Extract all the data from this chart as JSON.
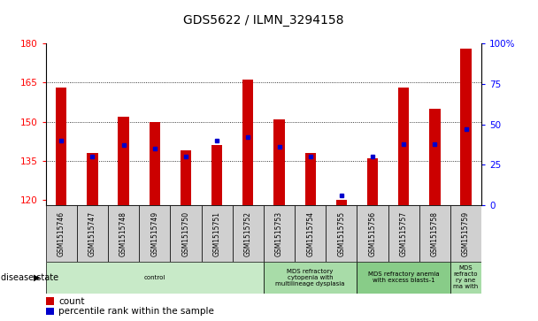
{
  "title": "GDS5622 / ILMN_3294158",
  "samples": [
    "GSM1515746",
    "GSM1515747",
    "GSM1515748",
    "GSM1515749",
    "GSM1515750",
    "GSM1515751",
    "GSM1515752",
    "GSM1515753",
    "GSM1515754",
    "GSM1515755",
    "GSM1515756",
    "GSM1515757",
    "GSM1515758",
    "GSM1515759"
  ],
  "count_values": [
    163,
    138,
    152,
    150,
    139,
    141,
    166,
    151,
    138,
    120,
    136,
    163,
    155,
    178
  ],
  "percentile_values": [
    40,
    30,
    37,
    35,
    30,
    40,
    42,
    36,
    30,
    6,
    30,
    38,
    38,
    47
  ],
  "y_min": 118,
  "y_max": 180,
  "y_ticks": [
    120,
    135,
    150,
    165,
    180
  ],
  "y2_ticks_vals": [
    0,
    25,
    50,
    75,
    100
  ],
  "y2_tick_labels": [
    "0",
    "25",
    "50",
    "75",
    "100%"
  ],
  "grid_lines": [
    135,
    150,
    165
  ],
  "disease_groups": [
    {
      "label": "control",
      "start": 0,
      "end": 7,
      "color": "#c8eac8"
    },
    {
      "label": "MDS refractory\ncytopenia with\nmultilineage dysplasia",
      "start": 7,
      "end": 10,
      "color": "#a8dca8"
    },
    {
      "label": "MDS refractory anemia\nwith excess blasts-1",
      "start": 10,
      "end": 13,
      "color": "#88cc88"
    },
    {
      "label": "MDS\nrefracto\nry ane\nma with",
      "start": 13,
      "end": 14,
      "color": "#a8dca8"
    }
  ],
  "bar_color": "#cc0000",
  "marker_color": "#0000cc",
  "bar_bottom": 118,
  "bar_width": 0.35,
  "sample_box_color": "#d0d0d0",
  "legend_count_color": "#cc0000",
  "legend_pct_color": "#0000cc"
}
